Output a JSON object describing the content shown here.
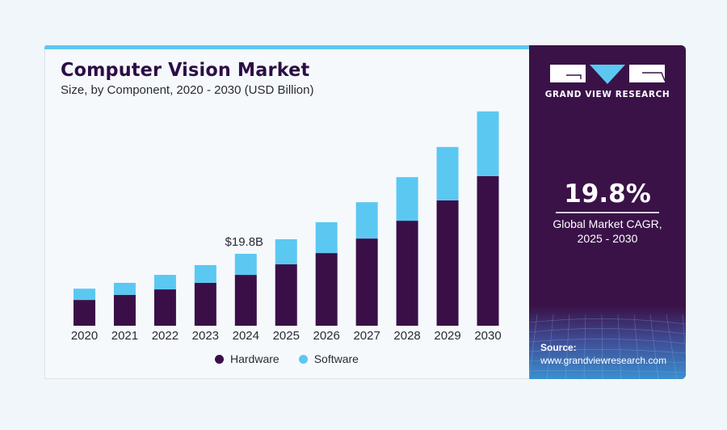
{
  "header": {
    "title": "Computer Vision Market",
    "subtitle": "Size, by Component, 2020 - 2030 (USD Billion)"
  },
  "colors": {
    "hardware": "#3a0f48",
    "software": "#5bc8f2",
    "panel": "#3a1248",
    "accent_bar": "#5bc8f2",
    "title": "#2d0d45"
  },
  "panel": {
    "brand": "GRAND VIEW RESEARCH",
    "logo_icon": "gvr-logo-icon",
    "cagr_value": "19.8%",
    "cagr_label_line1": "Global Market CAGR,",
    "cagr_label_line2": "2025 - 2030",
    "source_label": "Source:",
    "source_url": "www.grandviewresearch.com"
  },
  "chart_data": {
    "type": "bar",
    "stacked": true,
    "title": "Computer Vision Market",
    "subtitle": "Size, by Component, 2020 - 2030 (USD Billion)",
    "xlabel": "",
    "ylabel": "",
    "categories": [
      "2020",
      "2021",
      "2022",
      "2023",
      "2024",
      "2025",
      "2026",
      "2027",
      "2028",
      "2029",
      "2030"
    ],
    "series": [
      {
        "name": "Hardware",
        "color": "#3a0f48",
        "values": [
          7.1,
          8.5,
          10.0,
          11.8,
          14.0,
          16.9,
          20.0,
          24.0,
          28.9,
          34.5,
          41.2
        ]
      },
      {
        "name": "Software",
        "color": "#5bc8f2",
        "values": [
          3.1,
          3.3,
          4.0,
          4.9,
          5.8,
          6.9,
          8.5,
          10.0,
          12.0,
          14.7,
          17.8
        ]
      }
    ],
    "ylim": [
      0,
      60
    ],
    "grid": false,
    "y_axis_visible": false,
    "annotations": [
      {
        "category": "2024",
        "text": "$19.8B"
      }
    ],
    "legend": {
      "position": "bottom-center",
      "entries": [
        "Hardware",
        "Software"
      ]
    }
  }
}
